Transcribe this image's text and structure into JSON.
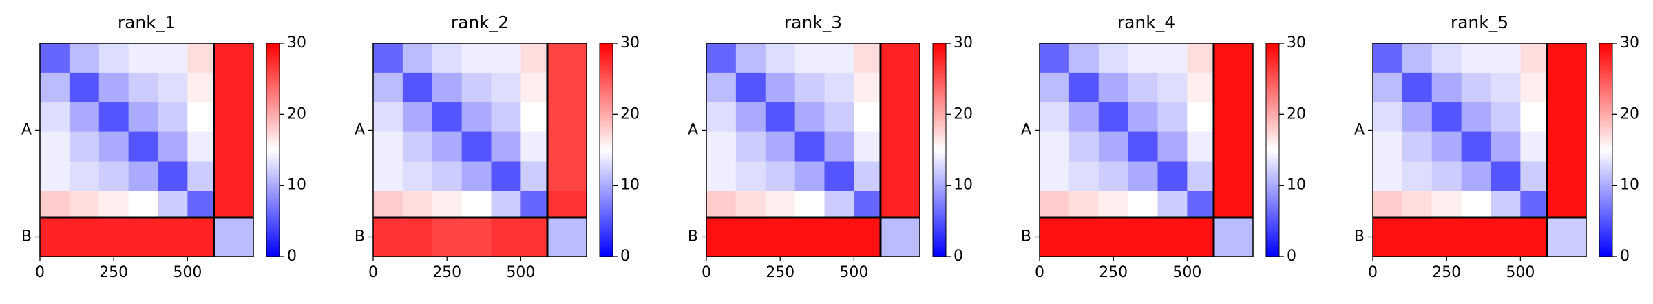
{
  "chart_data": [
    {
      "type": "heatmap",
      "title": "rank_1",
      "x_bins": [
        0,
        100,
        200,
        300,
        400,
        500,
        590,
        723
      ],
      "y_bins": [
        0,
        100,
        200,
        300,
        400,
        500,
        590,
        723
      ],
      "values": [
        [
          6,
          11,
          13,
          14,
          14,
          17,
          28
        ],
        [
          11,
          5,
          10,
          12,
          13,
          16,
          28
        ],
        [
          13,
          10,
          5,
          10,
          12,
          15,
          28
        ],
        [
          14,
          12,
          10,
          5,
          10,
          14,
          28
        ],
        [
          14,
          13,
          12,
          10,
          5,
          12,
          28
        ],
        [
          18,
          17,
          16,
          15,
          12,
          6,
          28
        ],
        [
          28,
          28,
          28,
          28,
          28,
          28,
          11
        ]
      ],
      "xlim": [
        0,
        723
      ],
      "ylim": [
        723,
        0
      ],
      "xticks": [
        0,
        250,
        500
      ],
      "yticks": [
        {
          "value": 295,
          "label": "A"
        },
        {
          "value": 656.5,
          "label": "B"
        }
      ],
      "chain_breaks": [
        590
      ],
      "colormap": "bwr",
      "clim": [
        0,
        30
      ],
      "cbar_ticks": [
        0,
        10,
        20,
        30
      ]
    },
    {
      "type": "heatmap",
      "title": "rank_2",
      "x_bins": [
        0,
        100,
        200,
        300,
        400,
        500,
        590,
        723
      ],
      "y_bins": [
        0,
        100,
        200,
        300,
        400,
        500,
        590,
        723
      ],
      "values": [
        [
          6,
          11,
          13,
          14,
          14,
          17,
          26
        ],
        [
          11,
          5,
          10,
          12,
          13,
          16,
          26
        ],
        [
          13,
          10,
          5,
          10,
          12,
          15,
          26
        ],
        [
          14,
          12,
          10,
          5,
          10,
          14,
          26
        ],
        [
          14,
          13,
          12,
          10,
          5,
          12,
          26
        ],
        [
          18,
          17,
          16,
          15,
          12,
          6,
          27
        ],
        [
          27,
          27,
          26,
          26,
          27,
          27,
          11
        ]
      ],
      "xlim": [
        0,
        723
      ],
      "ylim": [
        723,
        0
      ],
      "xticks": [
        0,
        250,
        500
      ],
      "yticks": [
        {
          "value": 295,
          "label": "A"
        },
        {
          "value": 656.5,
          "label": "B"
        }
      ],
      "chain_breaks": [
        590
      ],
      "colormap": "bwr",
      "clim": [
        0,
        30
      ],
      "cbar_ticks": [
        0,
        10,
        20,
        30
      ]
    },
    {
      "type": "heatmap",
      "title": "rank_3",
      "x_bins": [
        0,
        100,
        200,
        300,
        400,
        500,
        590,
        723
      ],
      "y_bins": [
        0,
        100,
        200,
        300,
        400,
        500,
        590,
        723
      ],
      "values": [
        [
          6,
          11,
          13,
          14,
          14,
          17,
          28
        ],
        [
          11,
          5,
          10,
          12,
          13,
          16,
          28
        ],
        [
          13,
          10,
          5,
          10,
          12,
          15,
          28
        ],
        [
          14,
          12,
          10,
          5,
          10,
          14,
          28
        ],
        [
          14,
          13,
          12,
          10,
          5,
          12,
          28
        ],
        [
          18,
          17,
          16,
          15,
          12,
          6,
          28
        ],
        [
          29,
          29,
          29,
          29,
          29,
          29,
          11
        ]
      ],
      "xlim": [
        0,
        723
      ],
      "ylim": [
        723,
        0
      ],
      "xticks": [
        0,
        250,
        500
      ],
      "yticks": [
        {
          "value": 295,
          "label": "A"
        },
        {
          "value": 656.5,
          "label": "B"
        }
      ],
      "chain_breaks": [
        590
      ],
      "colormap": "bwr",
      "clim": [
        0,
        30
      ],
      "cbar_ticks": [
        0,
        10,
        20,
        30
      ]
    },
    {
      "type": "heatmap",
      "title": "rank_4",
      "x_bins": [
        0,
        100,
        200,
        300,
        400,
        500,
        590,
        723
      ],
      "y_bins": [
        0,
        100,
        200,
        300,
        400,
        500,
        590,
        723
      ],
      "values": [
        [
          6,
          11,
          13,
          14,
          14,
          17,
          29
        ],
        [
          11,
          5,
          10,
          12,
          13,
          16,
          29
        ],
        [
          13,
          10,
          5,
          10,
          12,
          15,
          29
        ],
        [
          14,
          12,
          10,
          5,
          10,
          14,
          29
        ],
        [
          14,
          13,
          12,
          10,
          5,
          12,
          29
        ],
        [
          18,
          17,
          16,
          15,
          12,
          6,
          29
        ],
        [
          29,
          29,
          29,
          29,
          29,
          29,
          11
        ]
      ],
      "xlim": [
        0,
        723
      ],
      "ylim": [
        723,
        0
      ],
      "xticks": [
        0,
        250,
        500
      ],
      "yticks": [
        {
          "value": 295,
          "label": "A"
        },
        {
          "value": 656.5,
          "label": "B"
        }
      ],
      "chain_breaks": [
        590
      ],
      "colormap": "bwr",
      "clim": [
        0,
        30
      ],
      "cbar_ticks": [
        0,
        10,
        20,
        30
      ]
    },
    {
      "type": "heatmap",
      "title": "rank_5",
      "x_bins": [
        0,
        100,
        200,
        300,
        400,
        500,
        590,
        723
      ],
      "y_bins": [
        0,
        100,
        200,
        300,
        400,
        500,
        590,
        723
      ],
      "values": [
        [
          6,
          11,
          13,
          14,
          14,
          17,
          29
        ],
        [
          11,
          5,
          10,
          12,
          13,
          16,
          29
        ],
        [
          13,
          10,
          5,
          10,
          12,
          15,
          29
        ],
        [
          14,
          12,
          10,
          5,
          10,
          14,
          29
        ],
        [
          14,
          13,
          12,
          10,
          5,
          12,
          29
        ],
        [
          18,
          17,
          16,
          15,
          12,
          6,
          29
        ],
        [
          29,
          29,
          29,
          29,
          29,
          29,
          12
        ]
      ],
      "xlim": [
        0,
        723
      ],
      "ylim": [
        723,
        0
      ],
      "xticks": [
        0,
        250,
        500
      ],
      "yticks": [
        {
          "value": 295,
          "label": "A"
        },
        {
          "value": 656.5,
          "label": "B"
        }
      ],
      "chain_breaks": [
        590
      ],
      "colormap": "bwr",
      "clim": [
        0,
        30
      ],
      "cbar_ticks": [
        0,
        10,
        20,
        30
      ]
    }
  ]
}
